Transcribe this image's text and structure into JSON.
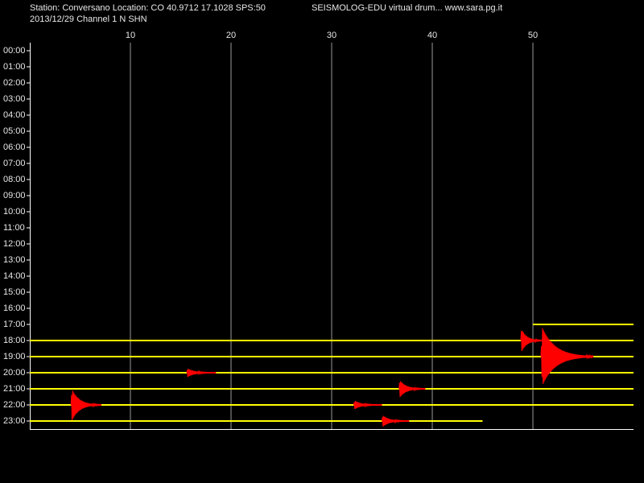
{
  "chart_data": {
    "type": "helicorder",
    "title": "Station: Conversano Location: CO 40.9712 17.1028 SPS:50",
    "subtitle": "2013/12/29  Channel 1 N SHN",
    "annotation": "SEISMOLOG-EDU virtual drum... www.sara.pg.it",
    "xlim": [
      0,
      60
    ],
    "xticks": [
      10,
      20,
      30,
      40,
      50
    ],
    "grid": true,
    "categories": [
      "00:00",
      "01:00",
      "02:00",
      "03:00",
      "04:00",
      "05:00",
      "06:00",
      "07:00",
      "08:00",
      "09:00",
      "10:00",
      "11:00",
      "12:00",
      "13:00",
      "14:00",
      "15:00",
      "16:00",
      "17:00",
      "18:00",
      "19:00",
      "20:00",
      "21:00",
      "22:00",
      "23:00"
    ],
    "trace_color": "#ffff00",
    "event_color": "#ff0000",
    "traces": [
      {
        "row": 17,
        "start": 50,
        "end": 60
      },
      {
        "row": 18,
        "start": 0,
        "end": 60
      },
      {
        "row": 19,
        "start": 0,
        "end": 60
      },
      {
        "row": 20,
        "start": 0,
        "end": 60
      },
      {
        "row": 21,
        "start": 0,
        "end": 60
      },
      {
        "row": 22,
        "start": 0,
        "end": 60
      },
      {
        "row": 23,
        "start": 0,
        "end": 45
      }
    ],
    "events": [
      {
        "row": 18,
        "start": 48.8,
        "end": 51,
        "amplitude": 0.8
      },
      {
        "row": 19,
        "start": 50.8,
        "end": 56,
        "amplitude": 2
      },
      {
        "row": 20,
        "start": 15.6,
        "end": 18.5,
        "amplitude": 0.3
      },
      {
        "row": 21,
        "start": 36.7,
        "end": 39.3,
        "amplitude": 0.6
      },
      {
        "row": 22,
        "start": 4.1,
        "end": 7.1,
        "amplitude": 1.1
      },
      {
        "row": 22,
        "start": 32.2,
        "end": 35,
        "amplitude": 0.3
      },
      {
        "row": 23,
        "start": 35,
        "end": 37.7,
        "amplitude": 0.4
      }
    ]
  }
}
